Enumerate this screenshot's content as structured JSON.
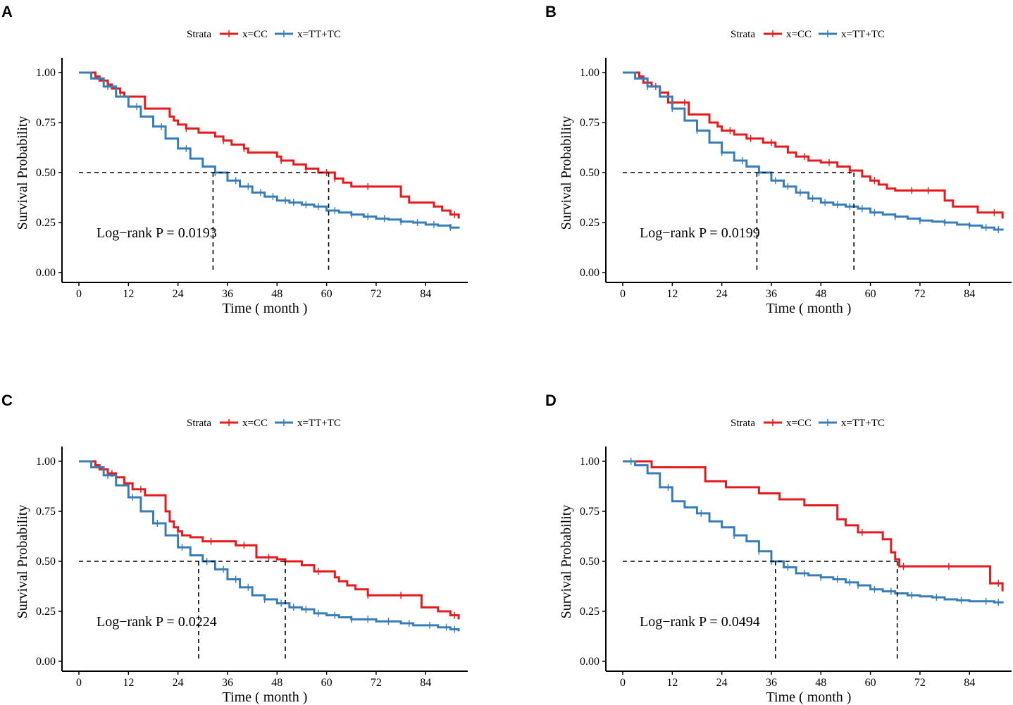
{
  "colors": {
    "cc": "#e41a1c",
    "tttc": "#377eb8",
    "axis": "#000000",
    "ref": "#000000"
  },
  "chart_data": [
    {
      "type": "line",
      "panel": "A",
      "title": "",
      "xlabel": "Time ( month )",
      "ylabel": "Survival Probability",
      "xlim": [
        0,
        92
      ],
      "ylim": [
        0,
        1
      ],
      "xticks": [
        0,
        12,
        24,
        36,
        48,
        60,
        72,
        84
      ],
      "xtick_labels": [
        "0",
        "12",
        "24",
        "36",
        "48",
        "60",
        "72",
        "84"
      ],
      "yticks": [
        0,
        0.25,
        0.5,
        0.75,
        1
      ],
      "ytick_labels": [
        "0.00",
        "0.25",
        "0.50",
        "0.75",
        "1.00"
      ],
      "legend_title": "Strata",
      "legend_position": "top",
      "annotation": "Log−rank P = 0.0193",
      "median_times": [
        32.5,
        60.5
      ],
      "series": [
        {
          "name": "x=CC",
          "color": "#e41a1c",
          "x": [
            0,
            4,
            5,
            7,
            8,
            10,
            11,
            16,
            22,
            23,
            24,
            26,
            29,
            33,
            35,
            37,
            40,
            41,
            48,
            49,
            52,
            55,
            58,
            62,
            64,
            66,
            78,
            80,
            86,
            88,
            90,
            92
          ],
          "y": [
            1,
            0.98,
            0.96,
            0.94,
            0.92,
            0.9,
            0.88,
            0.82,
            0.78,
            0.76,
            0.74,
            0.72,
            0.7,
            0.68,
            0.66,
            0.64,
            0.62,
            0.6,
            0.58,
            0.56,
            0.54,
            0.52,
            0.5,
            0.47,
            0.45,
            0.43,
            0.38,
            0.35,
            0.33,
            0.31,
            0.29,
            0.27
          ],
          "censor_x": [
            10,
            26,
            35,
            40,
            49,
            55,
            60,
            62,
            70,
            91
          ]
        },
        {
          "name": "x=TT+TC",
          "color": "#377eb8",
          "x": [
            0,
            3,
            6,
            9,
            12,
            15,
            18,
            21,
            24,
            27,
            30,
            33,
            36,
            39,
            42,
            45,
            48,
            51,
            54,
            57,
            60,
            63,
            66,
            69,
            72,
            75,
            78,
            81,
            84,
            87,
            90,
            92
          ],
          "y": [
            1,
            0.97,
            0.93,
            0.88,
            0.83,
            0.78,
            0.73,
            0.67,
            0.62,
            0.57,
            0.53,
            0.5,
            0.46,
            0.43,
            0.4,
            0.38,
            0.36,
            0.35,
            0.34,
            0.33,
            0.31,
            0.3,
            0.29,
            0.28,
            0.27,
            0.265,
            0.255,
            0.25,
            0.24,
            0.235,
            0.225,
            0.22
          ],
          "censor_x": [
            7,
            14,
            20,
            26,
            33,
            38,
            41,
            44,
            47,
            50,
            52,
            55,
            58,
            62,
            66,
            70,
            74,
            78,
            82,
            86,
            90
          ]
        }
      ]
    },
    {
      "type": "line",
      "panel": "B",
      "title": "",
      "xlabel": "Time ( month )",
      "ylabel": "Survival Probability",
      "xlim": [
        0,
        92
      ],
      "ylim": [
        0,
        1
      ],
      "xticks": [
        0,
        12,
        24,
        36,
        48,
        60,
        72,
        84
      ],
      "xtick_labels": [
        "0",
        "12",
        "24",
        "36",
        "48",
        "60",
        "72",
        "84"
      ],
      "yticks": [
        0,
        0.25,
        0.5,
        0.75,
        1
      ],
      "ytick_labels": [
        "0.00",
        "0.25",
        "0.50",
        "0.75",
        "1.00"
      ],
      "legend_title": "Strata",
      "legend_position": "top",
      "annotation": "Log−rank P = 0.0199",
      "median_times": [
        32.5,
        56
      ],
      "series": [
        {
          "name": "x=CC",
          "color": "#e41a1c",
          "x": [
            0,
            4,
            5,
            7,
            9,
            11,
            16,
            21,
            23,
            24,
            27,
            30,
            34,
            37,
            40,
            42,
            45,
            48,
            52,
            55,
            58,
            60,
            62,
            64,
            66,
            68,
            72,
            78,
            80,
            86,
            88,
            92
          ],
          "y": [
            1,
            0.98,
            0.95,
            0.93,
            0.9,
            0.85,
            0.79,
            0.75,
            0.73,
            0.71,
            0.69,
            0.67,
            0.65,
            0.63,
            0.6,
            0.58,
            0.56,
            0.55,
            0.53,
            0.51,
            0.48,
            0.46,
            0.44,
            0.42,
            0.41,
            0.41,
            0.41,
            0.36,
            0.33,
            0.3,
            0.3,
            0.27
          ],
          "censor_x": [
            8,
            15,
            26,
            31,
            36,
            44,
            50,
            55,
            61,
            70,
            74,
            90
          ]
        },
        {
          "name": "x=TT+TC",
          "color": "#377eb8",
          "x": [
            0,
            3,
            6,
            9,
            12,
            15,
            18,
            21,
            24,
            27,
            30,
            33,
            36,
            39,
            42,
            45,
            48,
            51,
            54,
            57,
            60,
            63,
            66,
            69,
            72,
            75,
            78,
            81,
            84,
            87,
            90,
            92
          ],
          "y": [
            1,
            0.97,
            0.93,
            0.88,
            0.82,
            0.76,
            0.71,
            0.65,
            0.6,
            0.56,
            0.53,
            0.5,
            0.46,
            0.43,
            0.4,
            0.37,
            0.35,
            0.34,
            0.33,
            0.32,
            0.3,
            0.29,
            0.28,
            0.27,
            0.26,
            0.255,
            0.25,
            0.24,
            0.235,
            0.225,
            0.215,
            0.21
          ],
          "censor_x": [
            6,
            12,
            18,
            24,
            29,
            33,
            37,
            40,
            43,
            46,
            49,
            52,
            55,
            58,
            61,
            66,
            72,
            78,
            84,
            88,
            91
          ]
        }
      ]
    },
    {
      "type": "line",
      "panel": "C",
      "title": "",
      "xlabel": "Time ( month )",
      "ylabel": "Survival Probability",
      "xlim": [
        0,
        92
      ],
      "ylim": [
        0,
        1
      ],
      "xticks": [
        0,
        12,
        24,
        36,
        48,
        60,
        72,
        84
      ],
      "xtick_labels": [
        "0",
        "12",
        "24",
        "36",
        "48",
        "60",
        "72",
        "84"
      ],
      "yticks": [
        0,
        0.25,
        0.5,
        0.75,
        1
      ],
      "ytick_labels": [
        "0.00",
        "0.25",
        "0.50",
        "0.75",
        "1.00"
      ],
      "legend_title": "Strata",
      "legend_position": "top",
      "annotation": "Log−rank P = 0.0224",
      "median_times": [
        29,
        50
      ],
      "series": [
        {
          "name": "x=CC",
          "color": "#e41a1c",
          "x": [
            0,
            4,
            5,
            7,
            9,
            11,
            13,
            16,
            21,
            22,
            23,
            24,
            25,
            27,
            30,
            35,
            38,
            43,
            48,
            50,
            54,
            57,
            62,
            63,
            65,
            67,
            70,
            78,
            83,
            87,
            90,
            92
          ],
          "y": [
            1,
            0.98,
            0.96,
            0.94,
            0.92,
            0.89,
            0.86,
            0.83,
            0.75,
            0.7,
            0.67,
            0.65,
            0.63,
            0.62,
            0.6,
            0.6,
            0.58,
            0.52,
            0.51,
            0.5,
            0.48,
            0.45,
            0.42,
            0.4,
            0.38,
            0.36,
            0.33,
            0.33,
            0.27,
            0.25,
            0.23,
            0.21
          ],
          "censor_x": [
            8,
            15,
            24,
            32,
            40,
            46,
            58,
            70,
            78,
            91
          ]
        },
        {
          "name": "x=TT+TC",
          "color": "#377eb8",
          "x": [
            0,
            3,
            6,
            9,
            12,
            15,
            18,
            21,
            24,
            27,
            30,
            33,
            36,
            39,
            42,
            45,
            48,
            51,
            54,
            57,
            60,
            63,
            66,
            69,
            72,
            75,
            78,
            81,
            84,
            87,
            90,
            92
          ],
          "y": [
            1,
            0.97,
            0.93,
            0.88,
            0.82,
            0.75,
            0.69,
            0.63,
            0.57,
            0.53,
            0.5,
            0.46,
            0.41,
            0.37,
            0.33,
            0.31,
            0.29,
            0.27,
            0.26,
            0.24,
            0.23,
            0.22,
            0.21,
            0.21,
            0.2,
            0.2,
            0.19,
            0.18,
            0.18,
            0.17,
            0.16,
            0.15
          ],
          "censor_x": [
            7,
            13,
            19,
            25,
            31,
            35,
            38,
            41,
            45,
            49,
            52,
            55,
            58,
            62,
            66,
            70,
            75,
            80,
            85,
            89,
            91
          ]
        }
      ]
    },
    {
      "type": "line",
      "panel": "D",
      "title": "",
      "xlabel": "Time ( month )",
      "ylabel": "Survival Probability",
      "xlim": [
        0,
        92
      ],
      "ylim": [
        0,
        1
      ],
      "xticks": [
        0,
        12,
        24,
        36,
        48,
        60,
        72,
        84
      ],
      "xtick_labels": [
        "0",
        "12",
        "24",
        "36",
        "48",
        "60",
        "72",
        "84"
      ],
      "yticks": [
        0,
        0.25,
        0.5,
        0.75,
        1
      ],
      "ytick_labels": [
        "0.00",
        "0.25",
        "0.50",
        "0.75",
        "1.00"
      ],
      "legend_title": "Strata",
      "legend_position": "top",
      "annotation": "Log−rank P = 0.0494",
      "median_times": [
        37,
        66.5
      ],
      "series": [
        {
          "name": "x=CC",
          "color": "#e41a1c",
          "x": [
            0,
            7,
            16,
            20,
            25,
            33,
            38,
            44,
            48,
            52,
            54,
            57,
            63,
            64,
            65,
            66,
            67,
            80,
            89,
            92
          ],
          "y": [
            1,
            0.97,
            0.97,
            0.9,
            0.87,
            0.84,
            0.81,
            0.78,
            0.78,
            0.71,
            0.68,
            0.645,
            0.61,
            0.61,
            0.545,
            0.51,
            0.475,
            0.475,
            0.39,
            0.35
          ],
          "censor_x": [
            58,
            68,
            79,
            91
          ]
        },
        {
          "name": "x=TT+TC",
          "color": "#377eb8",
          "x": [
            0,
            3,
            6,
            9,
            12,
            15,
            18,
            21,
            24,
            27,
            30,
            33,
            36,
            39,
            42,
            45,
            48,
            51,
            54,
            57,
            60,
            63,
            66,
            69,
            72,
            75,
            78,
            81,
            84,
            87,
            90,
            92
          ],
          "y": [
            1,
            0.98,
            0.94,
            0.87,
            0.8,
            0.77,
            0.74,
            0.7,
            0.67,
            0.63,
            0.6,
            0.55,
            0.5,
            0.47,
            0.44,
            0.43,
            0.42,
            0.41,
            0.395,
            0.38,
            0.36,
            0.35,
            0.34,
            0.33,
            0.325,
            0.32,
            0.31,
            0.305,
            0.3,
            0.3,
            0.295,
            0.29
          ],
          "censor_x": [
            2,
            11,
            19,
            27,
            33,
            36,
            40,
            44,
            48,
            52,
            55,
            57,
            61,
            65,
            70,
            76,
            82,
            88,
            91
          ]
        }
      ]
    }
  ]
}
